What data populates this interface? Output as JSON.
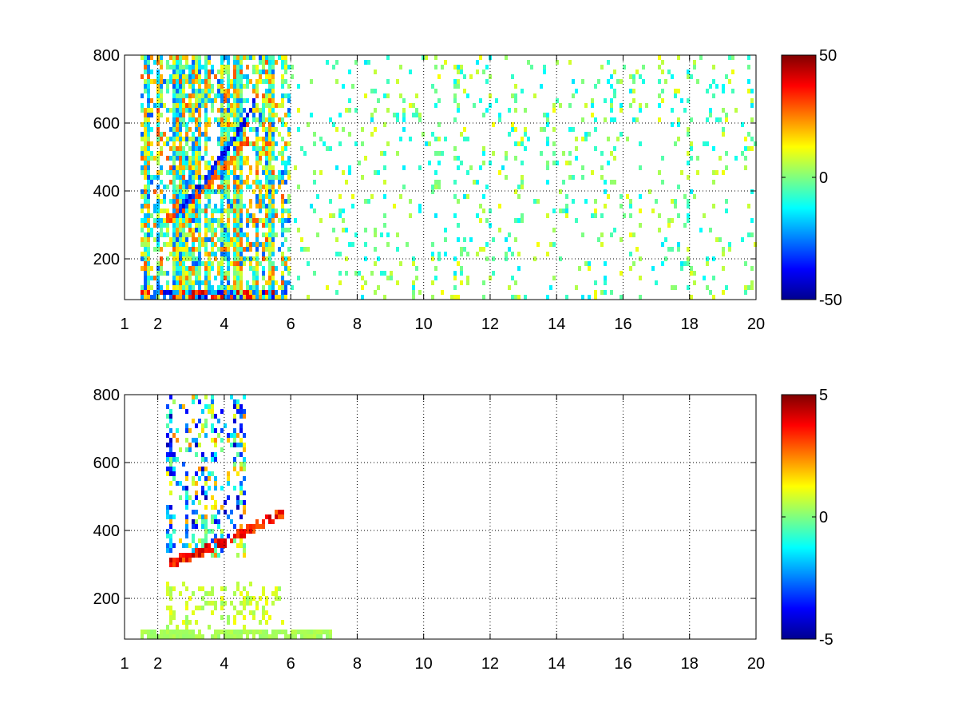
{
  "chart_data": [
    {
      "type": "heatmap",
      "title": "",
      "xlabel": "",
      "ylabel": "",
      "xlim": [
        1,
        20
      ],
      "ylim": [
        80,
        800
      ],
      "x_ticks": [
        1,
        2,
        4,
        6,
        8,
        10,
        12,
        14,
        16,
        18,
        20
      ],
      "x_tick_labels": [
        "1",
        "2",
        "4",
        "6",
        "8",
        "10",
        "12",
        "14",
        "16",
        "18",
        "20"
      ],
      "y_ticks": [
        200,
        400,
        600,
        800
      ],
      "y_tick_labels": [
        "200",
        "400",
        "600",
        "800"
      ],
      "grid": true,
      "grid_style": "dotted",
      "colormap": "jet",
      "clim": [
        -50,
        50
      ],
      "colorbar": {
        "ticks": [
          50,
          0,
          -50
        ],
        "tick_labels": [
          "50",
          "0",
          "-50"
        ],
        "position": "right"
      },
      "features": [
        {
          "kind": "arc",
          "x_range": [
            2.2,
            4.7
          ],
          "y_start": 310,
          "curve": 0.23,
          "value": 35,
          "note": "positive ridge"
        },
        {
          "kind": "arc",
          "x_range": [
            2.6,
            4.9
          ],
          "y_start": 340,
          "curve": 0.29,
          "value": -45,
          "note": "negative ridge"
        },
        {
          "kind": "band",
          "x_range": [
            1.5,
            5.9
          ],
          "y_range": [
            80,
            110
          ],
          "value": 45,
          "note": "strong mixed band at bottom"
        },
        {
          "kind": "scatter",
          "x_range": [
            1.5,
            6.0
          ],
          "y_range": [
            80,
            800
          ],
          "value_range": [
            -30,
            30
          ],
          "density": 0.75
        },
        {
          "kind": "scatter",
          "x_range": [
            6.0,
            20.0
          ],
          "y_range": [
            80,
            800
          ],
          "value_range": [
            -15,
            12
          ],
          "density": 0.1
        }
      ]
    },
    {
      "type": "heatmap",
      "title": "",
      "xlabel": "",
      "ylabel": "",
      "xlim": [
        1,
        20
      ],
      "ylim": [
        80,
        800
      ],
      "x_ticks": [
        1,
        2,
        4,
        6,
        8,
        10,
        12,
        14,
        16,
        18,
        20
      ],
      "x_tick_labels": [
        "1",
        "2",
        "4",
        "6",
        "8",
        "10",
        "12",
        "14",
        "16",
        "18",
        "20"
      ],
      "y_ticks": [
        200,
        400,
        600,
        800
      ],
      "y_tick_labels": [
        "200",
        "400",
        "600",
        "800"
      ],
      "grid": true,
      "grid_style": "dotted",
      "colormap": "jet",
      "clim": [
        -5,
        5
      ],
      "colorbar": {
        "ticks": [
          5,
          0,
          -5
        ],
        "tick_labels": [
          "5",
          "0",
          "-5"
        ],
        "position": "right"
      },
      "features": [
        {
          "kind": "arc",
          "x_range": [
            2.3,
            5.8
          ],
          "y_start": 300,
          "curve": 0.12,
          "value": 4.5,
          "note": "positive ridge"
        },
        {
          "kind": "scatter",
          "x_range": [
            2.2,
            4.6
          ],
          "y_range": [
            320,
            800
          ],
          "value_range": [
            -4.5,
            2.5
          ],
          "density": 0.35
        },
        {
          "kind": "band",
          "x_range": [
            1.5,
            7.2
          ],
          "y_range": [
            80,
            110
          ],
          "value": 0.6,
          "note": "low-amplitude band at bottom"
        },
        {
          "kind": "scatter",
          "x_range": [
            2.2,
            5.8
          ],
          "y_range": [
            110,
            250
          ],
          "value_range": [
            0.2,
            1.2
          ],
          "density": 0.25
        }
      ]
    }
  ]
}
